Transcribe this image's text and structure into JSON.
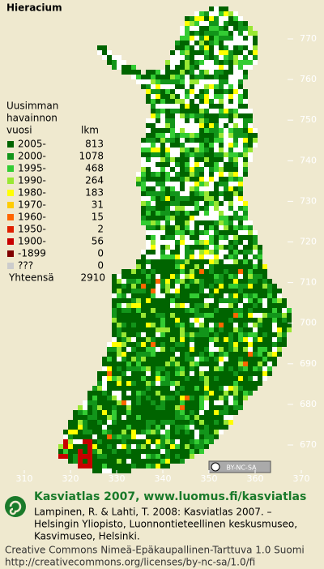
{
  "title": "Hieracium",
  "legend": {
    "header": [
      "Uusimman",
      "havainnon",
      "vuosi"
    ],
    "count_header": "lkm",
    "items": [
      {
        "label": "2005-",
        "count": 813,
        "color": "#006400"
      },
      {
        "label": "2000-",
        "count": 1078,
        "color": "#12951a"
      },
      {
        "label": "1995-",
        "count": 468,
        "color": "#33cc33"
      },
      {
        "label": "1990-",
        "count": 264,
        "color": "#99e833"
      },
      {
        "label": "1980-",
        "count": 183,
        "color": "#ffff00"
      },
      {
        "label": "1970-",
        "count": 31,
        "color": "#ffcc00"
      },
      {
        "label": "1960-",
        "count": 15,
        "color": "#ff6600"
      },
      {
        "label": "1950-",
        "count": 2,
        "color": "#e02000"
      },
      {
        "label": "1900-",
        "count": 56,
        "color": "#c80000"
      },
      {
        "label": "-1899",
        "count": 0,
        "color": "#800000"
      },
      {
        "label": "???",
        "count": 0,
        "color": "#cccccc"
      }
    ],
    "total_label": "Yhteensä",
    "total": 2910
  },
  "map": {
    "yticks": [
      670,
      680,
      690,
      700,
      710,
      720,
      730,
      740,
      750,
      760,
      770
    ],
    "xticks": [
      310,
      320,
      330,
      340,
      350,
      360,
      370
    ],
    "badge": "BY-NC-SA"
  },
  "footer": {
    "heading": "Kasviatlas 2007, www.luomus.fi/kasviatlas",
    "citation": [
      "Lampinen, R. & Lahti, T. 2008: Kasviatlas 2007. –",
      "Helsingin Yliopisto, Luonnontieteellinen keskusmuseo,",
      "Kasvimuseo, Helsinki."
    ],
    "license": [
      "Creative Commons Nimeä-Epäkaupallinen-Tarttuva 1.0 Suomi",
      "http://creativecommons.org/licenses/by-nc-sa/1.0/fi"
    ]
  }
}
